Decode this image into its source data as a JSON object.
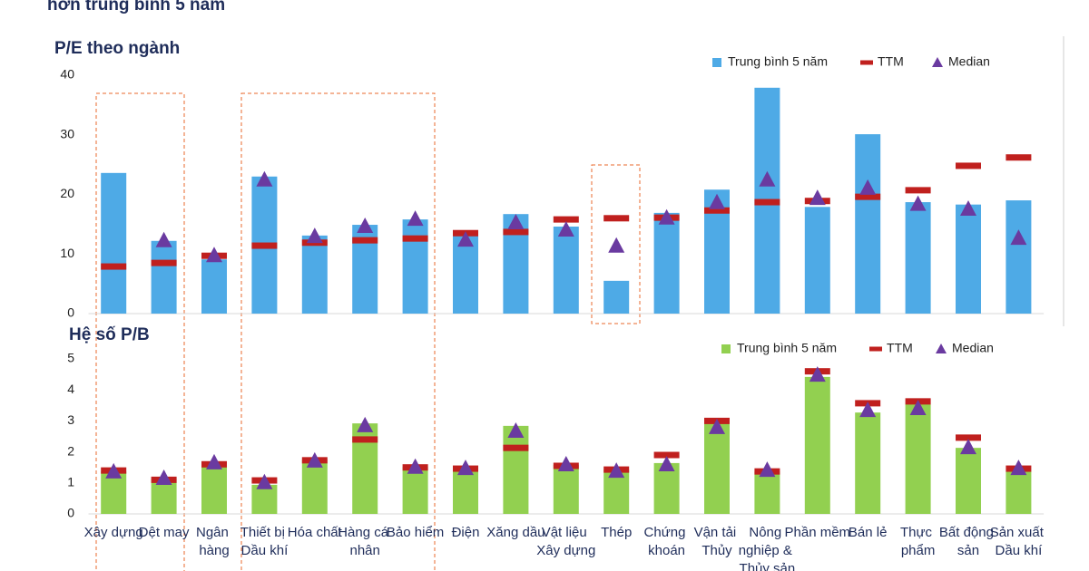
{
  "header": "hơn trung bình 5 năm",
  "chart_data": [
    {
      "type": "bar",
      "title": "P/E theo ngành",
      "ylim": [
        0,
        40
      ],
      "yticks": [
        0,
        10,
        20,
        30,
        40
      ],
      "series": [
        {
          "name": "Trung bình 5 năm",
          "marker": "bar",
          "color": "#4eaae6",
          "values": [
            23.6,
            12.2,
            9.1,
            23,
            13.1,
            14.9,
            15.8,
            13.4,
            16.7,
            14.6,
            5.5,
            16.9,
            20.8,
            37.9,
            17.9,
            30.1,
            18.7,
            18.3,
            19
          ]
        },
        {
          "name": "TTM",
          "marker": "dash",
          "color": "#c0201e",
          "values": [
            7.9,
            8.5,
            9.7,
            11.4,
            11.9,
            12.3,
            12.6,
            13.5,
            13.7,
            15.8,
            16,
            16.1,
            17.3,
            18.7,
            18.9,
            19.6,
            20.7,
            24.8,
            26.2
          ]
        },
        {
          "name": "Median",
          "marker": "triangle",
          "color": "#6a3aa0",
          "values": [
            null,
            12.2,
            9.7,
            22.4,
            12.9,
            14.6,
            15.8,
            12.3,
            15.2,
            14,
            11.3,
            16,
            18.6,
            22.4,
            19.3,
            21,
            18.3,
            17.5,
            12.6
          ]
        }
      ]
    },
    {
      "type": "bar",
      "title": "Hệ số P/B",
      "ylim": [
        0,
        5
      ],
      "yticks": [
        0,
        1,
        2,
        3,
        4,
        5
      ],
      "categories": [
        "Xây dựng",
        "Dệt may",
        "Ngân hàng",
        "Thiết bị Dầu khí",
        "Hóa chất",
        "Hàng cá nhân",
        "Bảo hiểm",
        "Điện",
        "Xăng dầu",
        "Vật liệu Xây dựng",
        "Thép",
        "Chứng khoán",
        "Vận tải Thủy",
        "Nông nghiệp & Thủy sản",
        "Phần mềm",
        "Bán lẻ",
        "Thực phẩm",
        "Bất động sản",
        "Sản xuất Dầu khí"
      ],
      "series": [
        {
          "name": "Trung bình 5 năm",
          "marker": "bar",
          "color": "#92d050",
          "values": [
            1.37,
            1.14,
            1.67,
            0.94,
            1.75,
            2.92,
            1.52,
            1.5,
            2.84,
            1.58,
            1.43,
            1.64,
            3.04,
            1.37,
            4.42,
            3.27,
            3.54,
            2.13,
            1.37
          ]
        },
        {
          "name": "TTM",
          "marker": "dash",
          "color": "#c0201e",
          "values": [
            1.4,
            1.1,
            1.6,
            1.08,
            1.73,
            2.4,
            1.5,
            1.46,
            2.13,
            1.55,
            1.43,
            1.9,
            3,
            1.37,
            4.6,
            3.57,
            3.63,
            2.46,
            1.46
          ]
        },
        {
          "name": "Median",
          "marker": "triangle",
          "color": "#6a3aa0",
          "values": [
            1.35,
            1.14,
            1.64,
            1,
            1.7,
            2.84,
            1.5,
            1.46,
            2.66,
            1.58,
            1.37,
            1.58,
            2.78,
            1.4,
            4.47,
            3.33,
            3.39,
            2.13,
            1.46
          ]
        }
      ]
    }
  ]
}
